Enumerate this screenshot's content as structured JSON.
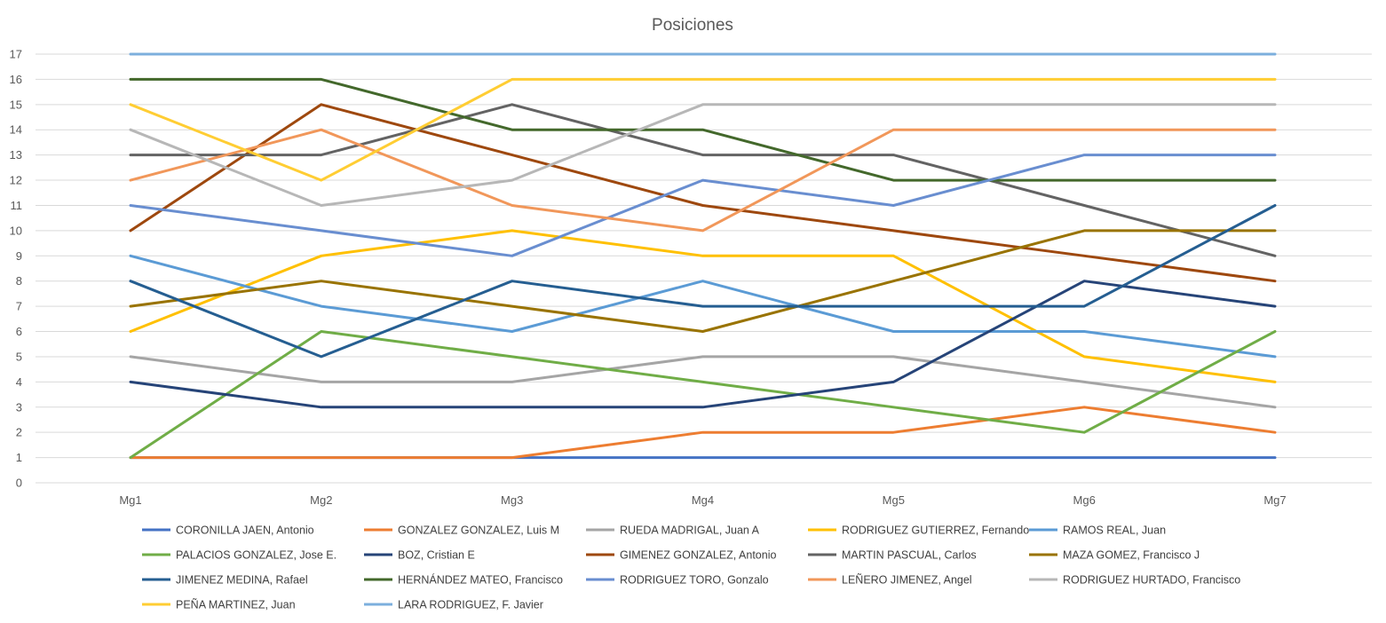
{
  "chart_data": {
    "type": "line",
    "title": "Posiciones",
    "xlabel": "",
    "ylabel": "",
    "ylim": [
      0,
      17
    ],
    "yticks": [
      "0",
      "1",
      "2",
      "3",
      "4",
      "5",
      "6",
      "7",
      "8",
      "9",
      "10",
      "11",
      "12",
      "13",
      "14",
      "15",
      "16",
      "17"
    ],
    "grid": true,
    "legend_position": "bottom",
    "categories": [
      "Mg1",
      "Mg2",
      "Mg3",
      "Mg4",
      "Mg5",
      "Mg6",
      "Mg7"
    ],
    "series": [
      {
        "name": "CORONILLA JAEN, Antonio",
        "color": "#4472C4",
        "values": [
          1,
          1,
          1,
          1,
          1,
          1,
          1
        ]
      },
      {
        "name": "GONZALEZ GONZALEZ, Luis M",
        "color": "#ED7D31",
        "values": [
          1,
          1,
          1,
          2,
          2,
          3,
          2
        ]
      },
      {
        "name": "RUEDA MADRIGAL, Juan A",
        "color": "#A5A5A5",
        "values": [
          5,
          4,
          4,
          5,
          5,
          4,
          3
        ]
      },
      {
        "name": "RODRIGUEZ GUTIERREZ, Fernando",
        "color": "#FFC000",
        "values": [
          6,
          9,
          10,
          9,
          9,
          5,
          4
        ]
      },
      {
        "name": "RAMOS REAL, Juan",
        "color": "#5B9BD5",
        "values": [
          9,
          7,
          6,
          8,
          6,
          6,
          5
        ]
      },
      {
        "name": "PALACIOS GONZALEZ, Jose E.",
        "color": "#70AD47",
        "values": [
          1,
          6,
          5,
          4,
          3,
          2,
          6
        ]
      },
      {
        "name": "BOZ, Cristian E",
        "color": "#264478",
        "values": [
          4,
          3,
          3,
          3,
          4,
          8,
          7
        ]
      },
      {
        "name": "GIMENEZ GONZALEZ, Antonio",
        "color": "#9E480E",
        "values": [
          10,
          15,
          13,
          11,
          10,
          9,
          8
        ]
      },
      {
        "name": "MARTIN PASCUAL, Carlos",
        "color": "#636363",
        "values": [
          13,
          13,
          15,
          13,
          13,
          11,
          9
        ]
      },
      {
        "name": "MAZA GOMEZ, Francisco J",
        "color": "#997300",
        "values": [
          7,
          8,
          7,
          6,
          8,
          10,
          10
        ]
      },
      {
        "name": "JIMENEZ MEDINA, Rafael",
        "color": "#255E91",
        "values": [
          8,
          5,
          8,
          7,
          7,
          7,
          11
        ]
      },
      {
        "name": "HERNÁNDEZ MATEO, Francisco",
        "color": "#43682B",
        "values": [
          16,
          16,
          14,
          14,
          12,
          12,
          12
        ]
      },
      {
        "name": "RODRIGUEZ TORO, Gonzalo",
        "color": "#698ED0",
        "values": [
          11,
          10,
          9,
          12,
          11,
          13,
          13
        ]
      },
      {
        "name": "LEÑERO JIMENEZ, Angel",
        "color": "#F1975A",
        "values": [
          12,
          14,
          11,
          10,
          14,
          14,
          14
        ]
      },
      {
        "name": "RODRIGUEZ HURTADO, Francisco",
        "color": "#B7B7B7",
        "values": [
          14,
          11,
          12,
          15,
          15,
          15,
          15
        ]
      },
      {
        "name": "PEÑA MARTINEZ, Juan",
        "color": "#FFCD33",
        "values": [
          15,
          12,
          16,
          16,
          16,
          16,
          16
        ]
      },
      {
        "name": "LARA RODRIGUEZ, F. Javier",
        "color": "#7CAFDD",
        "values": [
          17,
          17,
          17,
          17,
          17,
          17,
          17
        ]
      }
    ]
  }
}
